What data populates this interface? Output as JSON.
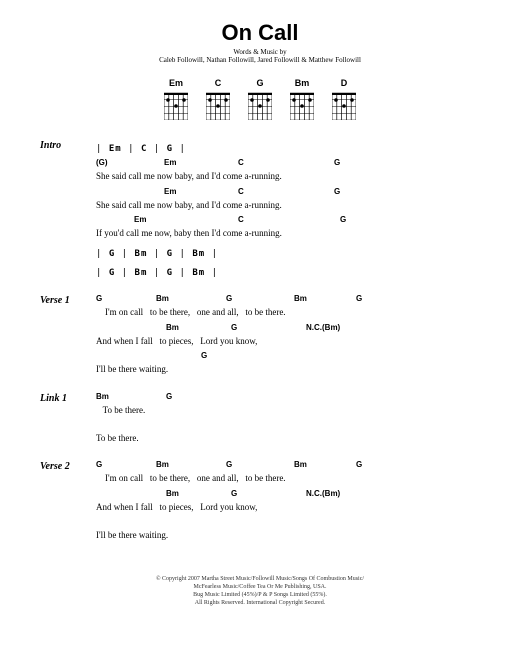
{
  "title": "On Call",
  "credits_label": "Words & Music by",
  "credits": "Caleb Followill, Nathan Followill, Jared Followill & Matthew Followill",
  "chord_diagrams": [
    "Em",
    "C",
    "G",
    "Bm",
    "D"
  ],
  "sections": [
    {
      "label": "Intro",
      "bars": [
        "| Em    | C    | G    |"
      ],
      "lines": [
        {
          "text": "She said call me now baby, and I'd come a-running.",
          "chords": [
            {
              "c": "(G)",
              "pos": 0
            },
            {
              "c": "Em",
              "pos": 68
            },
            {
              "c": "C",
              "pos": 142
            },
            {
              "c": "G",
              "pos": 238
            }
          ]
        },
        {
          "text": "She said call me now baby, and I'd come a-running.",
          "chords": [
            {
              "c": "Em",
              "pos": 68
            },
            {
              "c": "C",
              "pos": 142
            },
            {
              "c": "G",
              "pos": 238
            }
          ]
        },
        {
          "text": "If you'd call me now, baby then I'd come a-running.",
          "chords": [
            {
              "c": "Em",
              "pos": 38
            },
            {
              "c": "C",
              "pos": 142
            },
            {
              "c": "G",
              "pos": 244
            }
          ]
        }
      ],
      "bars_after": [
        "| G    | Bm    | G    | Bm    |",
        "| G    | Bm    | G    | Bm    |"
      ]
    },
    {
      "label": "Verse 1",
      "lines": [
        {
          "text": "    I'm on call   to be there,   one and all,   to be there.",
          "chords": [
            {
              "c": "G",
              "pos": 0
            },
            {
              "c": "Bm",
              "pos": 60
            },
            {
              "c": "G",
              "pos": 130
            },
            {
              "c": "Bm",
              "pos": 198
            },
            {
              "c": "G",
              "pos": 260
            }
          ]
        },
        {
          "text": "And when I fall   to pieces,   Lord you know,",
          "chords": [
            {
              "c": "Bm",
              "pos": 70
            },
            {
              "c": "G",
              "pos": 135
            },
            {
              "c": "N.C.(Bm)",
              "pos": 210
            }
          ]
        },
        {
          "text": "I'll be there waiting.",
          "chords": [
            {
              "c": "G",
              "pos": 105
            }
          ]
        }
      ]
    },
    {
      "label": "Link 1",
      "lines": [
        {
          "text": "   To be there.",
          "chords": [
            {
              "c": "Bm",
              "pos": 0
            },
            {
              "c": "G",
              "pos": 70
            }
          ]
        },
        {
          "text": "To be there.",
          "chords": []
        }
      ]
    },
    {
      "label": "Verse 2",
      "lines": [
        {
          "text": "    I'm on call   to be there,   one and all,   to be there.",
          "chords": [
            {
              "c": "G",
              "pos": 0
            },
            {
              "c": "Bm",
              "pos": 60
            },
            {
              "c": "G",
              "pos": 130
            },
            {
              "c": "Bm",
              "pos": 198
            },
            {
              "c": "G",
              "pos": 260
            }
          ]
        },
        {
          "text": "And when I fall   to pieces,   Lord you know,",
          "chords": [
            {
              "c": "Bm",
              "pos": 70
            },
            {
              "c": "G",
              "pos": 135
            },
            {
              "c": "N.C.(Bm)",
              "pos": 210
            }
          ]
        },
        {
          "text": "I'll be there waiting.",
          "chords": []
        }
      ]
    }
  ],
  "copyright": [
    "© Copyright 2007 Martha Street Music/Followill Music/Songs Of Combustion Music/",
    "McFearless Music/Coffee Tea Or Me Publishing, USA.",
    "Bug Music Limited (45%)/P & P Songs Limited (55%).",
    "All Rights Reserved. International Copyright Secured."
  ],
  "styles": {
    "title_fontsize": 22,
    "credit_fontsize": 7,
    "body_fontsize": 9,
    "chord_fontsize": 8,
    "copyright_fontsize": 6,
    "bg_color": "#ffffff",
    "text_color": "#000000"
  }
}
